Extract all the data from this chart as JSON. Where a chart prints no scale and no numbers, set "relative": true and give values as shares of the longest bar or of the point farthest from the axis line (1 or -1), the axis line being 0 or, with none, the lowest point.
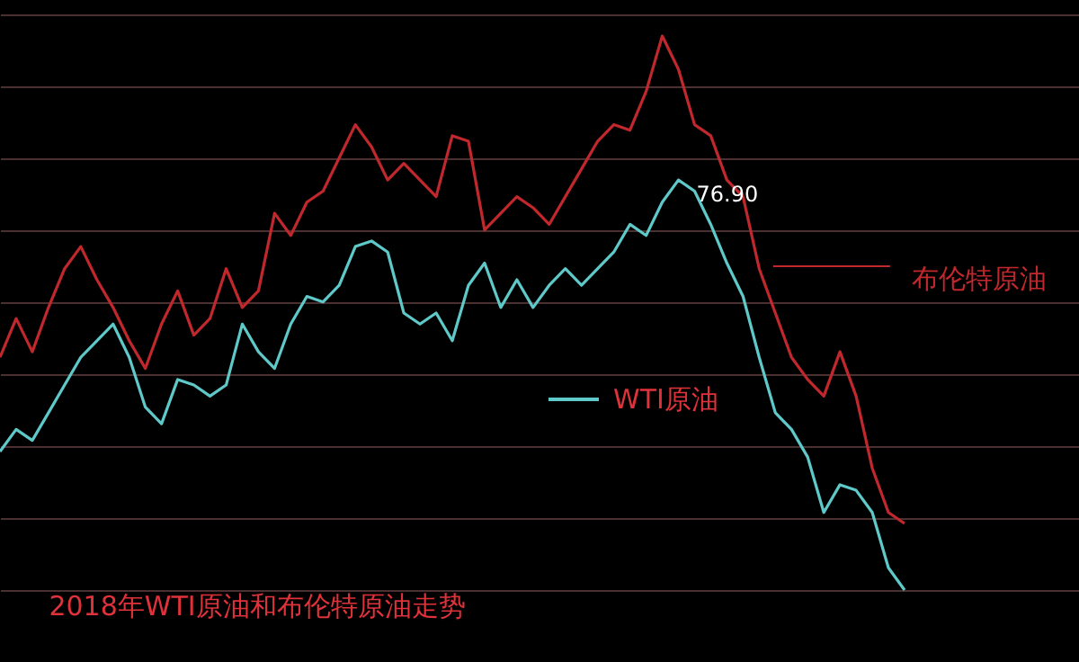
{
  "chart_data": {
    "type": "line",
    "relative": true,
    "title": "2018年WTI原油和布伦特原油走势",
    "categories": [
      null,
      null,
      null,
      null,
      null,
      null,
      null,
      null,
      null,
      null,
      null,
      null,
      null,
      null,
      null,
      null,
      null,
      null,
      null,
      null,
      null,
      null,
      null,
      null,
      null,
      null,
      null,
      null,
      null,
      null,
      null,
      null,
      null,
      null,
      null,
      null,
      null,
      null,
      null,
      null,
      null,
      null,
      null,
      null,
      null,
      null,
      null,
      null,
      null,
      null,
      null,
      null,
      null,
      null,
      null,
      null,
      null
    ],
    "series": [
      {
        "name": "布伦特原油",
        "color": "#c0282d",
        "values": [
          0.42,
          0.49,
          0.43,
          0.51,
          0.58,
          0.62,
          0.56,
          0.51,
          0.45,
          0.4,
          0.48,
          0.54,
          0.46,
          0.49,
          0.58,
          0.51,
          0.54,
          0.68,
          0.64,
          0.7,
          0.72,
          0.78,
          0.84,
          0.8,
          0.74,
          0.77,
          0.74,
          0.71,
          0.82,
          0.81,
          0.65,
          0.68,
          0.71,
          0.69,
          0.66,
          0.71,
          0.76,
          0.81,
          0.84,
          0.83,
          0.9,
          1,
          0.94,
          0.84,
          0.82,
          0.74,
          0.71,
          0.58,
          0.5,
          0.42,
          0.38,
          0.35,
          0.43,
          0.35,
          0.22,
          0.14,
          0.12
        ]
      },
      {
        "name": "WTI原油",
        "color": "#5fc9c9",
        "values": [
          0.25,
          0.29,
          0.27,
          0.32,
          0.37,
          0.42,
          0.45,
          0.48,
          0.42,
          0.33,
          0.3,
          0.38,
          0.37,
          0.35,
          0.37,
          0.48,
          0.43,
          0.4,
          0.48,
          0.53,
          0.52,
          0.55,
          0.62,
          0.63,
          0.61,
          0.5,
          0.48,
          0.5,
          0.45,
          0.55,
          0.59,
          0.51,
          0.56,
          0.51,
          0.55,
          0.58,
          0.55,
          0.58,
          0.61,
          0.66,
          0.64,
          0.7,
          0.74,
          0.72,
          0.66,
          0.59,
          0.53,
          0.42,
          0.32,
          0.29,
          0.24,
          0.14,
          0.19,
          0.18,
          0.14,
          0.04,
          0
        ]
      }
    ],
    "annotations": [
      "76.90"
    ],
    "grid": "y",
    "legend": "right",
    "line_style": "solid",
    "marker": "none"
  }
}
